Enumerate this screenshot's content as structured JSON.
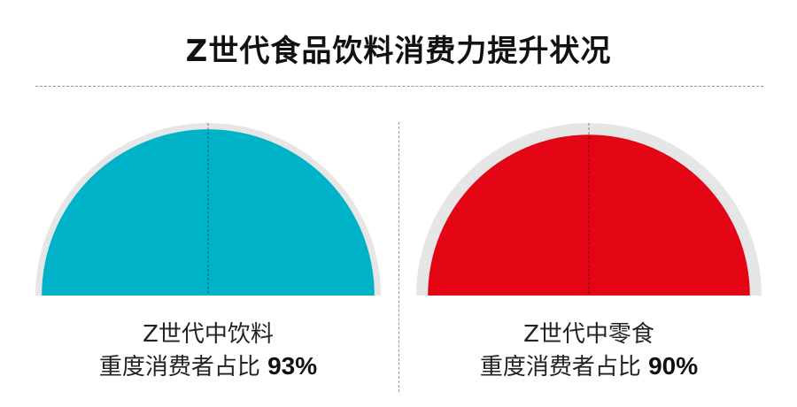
{
  "title": "Z世代食品饮料消费力提升状况",
  "chart_data": [
    {
      "type": "pie",
      "category": "Z世代中饮料",
      "label": "重度消费者占比",
      "value": 93,
      "value_text": "93%",
      "max": 100,
      "color": "#00b2c8",
      "track_color": "#e6e6e6"
    },
    {
      "type": "pie",
      "category": "Z世代中零食",
      "label": "重度消费者占比",
      "value": 90,
      "value_text": "90%",
      "max": 100,
      "color": "#e30414",
      "track_color": "#e6e6e6"
    }
  ]
}
